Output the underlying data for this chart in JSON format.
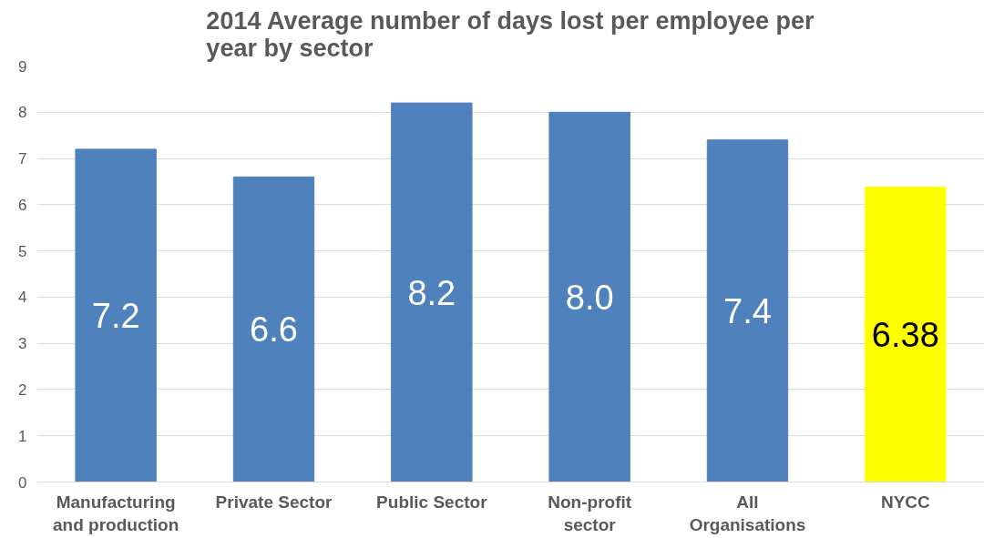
{
  "chart_data": {
    "type": "bar",
    "title": "2014 Average number of days lost per employee per year by sector",
    "categories": [
      "Manufacturing and production",
      "Private Sector",
      "Public Sector",
      "Non-profit sector",
      "All Organisations",
      "NYCC"
    ],
    "values": [
      7.2,
      6.6,
      8.2,
      8.0,
      7.4,
      6.38
    ],
    "colors": [
      "#4f81bd",
      "#4f81bd",
      "#4f81bd",
      "#4f81bd",
      "#4f81bd",
      "#ffff00"
    ],
    "value_labels": [
      "7.2",
      "6.6",
      "8.2",
      "8.0",
      "7.4",
      "6.38"
    ],
    "ylim": [
      0,
      9
    ],
    "yticks": [
      0,
      1,
      2,
      3,
      4,
      5,
      6,
      7,
      8,
      9
    ],
    "grid": "y"
  }
}
